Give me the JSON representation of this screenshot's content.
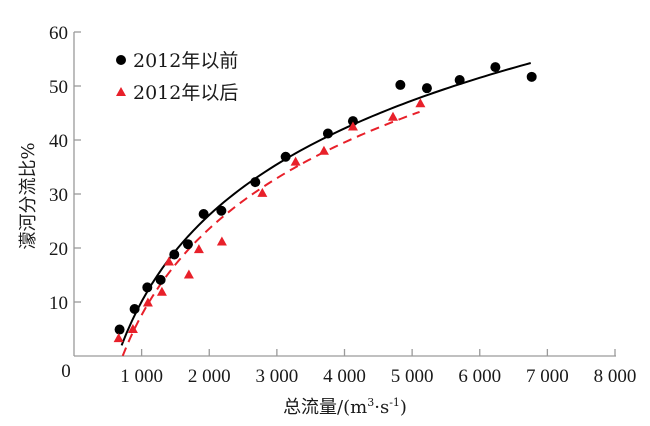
{
  "chart_data": {
    "type": "scatter",
    "title": "",
    "xlabel": "总流量/(m³·s⁻¹)",
    "xlabel_parts": {
      "main": "总流量/(m",
      "sup1": "3",
      "mid": "·s",
      "sup2": "-1",
      "end": ")"
    },
    "ylabel": "濛河分流比%",
    "xlim": [
      0,
      8000
    ],
    "ylim": [
      0,
      60
    ],
    "xticks": [
      1000,
      2000,
      3000,
      4000,
      5000,
      6000,
      7000,
      8000
    ],
    "xtick_labels": [
      "1 000",
      "2 000",
      "3 000",
      "4 000",
      "5 000",
      "6 000",
      "7 000",
      "8 000"
    ],
    "yticks": [
      10,
      20,
      30,
      40,
      50,
      60
    ],
    "ytick_labels": [
      "10",
      "20",
      "30",
      "40",
      "50",
      "60"
    ],
    "origin_label": "0",
    "grid": false,
    "legend_position": "top-left",
    "series": [
      {
        "name": "2012年以前",
        "marker": "circle",
        "color": "#000000",
        "x": [
          674,
          896,
          1084,
          1281,
          1483,
          1685,
          1917,
          2179,
          2681,
          3130,
          3755,
          4125,
          4826,
          5219,
          5703,
          6231,
          6768
        ],
        "y": [
          4.9,
          8.7,
          12.7,
          14.1,
          18.8,
          20.7,
          26.3,
          26.9,
          32.2,
          36.9,
          41.2,
          43.5,
          50.2,
          49.6,
          51.1,
          53.5,
          51.7
        ],
        "fit": {
          "type": "log",
          "a": 23.13,
          "b": -149.7,
          "x_range": [
            704,
            6754
          ],
          "line": "solid"
        }
      },
      {
        "name": "2012年以后",
        "marker": "triangle",
        "color": "#e8202a",
        "x": [
          660,
          871,
          1093,
          1300,
          1404,
          1699,
          1847,
          2187,
          2785,
          3277,
          3696,
          4125,
          4717,
          5122
        ],
        "y": [
          3.3,
          5.0,
          9.9,
          11.9,
          17.5,
          15.1,
          19.8,
          21.2,
          30.2,
          36.0,
          38.0,
          42.5,
          44.3,
          46.8
        ],
        "fit": {
          "type": "log",
          "a": 23.06,
          "b": -151.7,
          "x_range": [
            720,
            5110
          ],
          "line": "dashed"
        }
      }
    ]
  }
}
